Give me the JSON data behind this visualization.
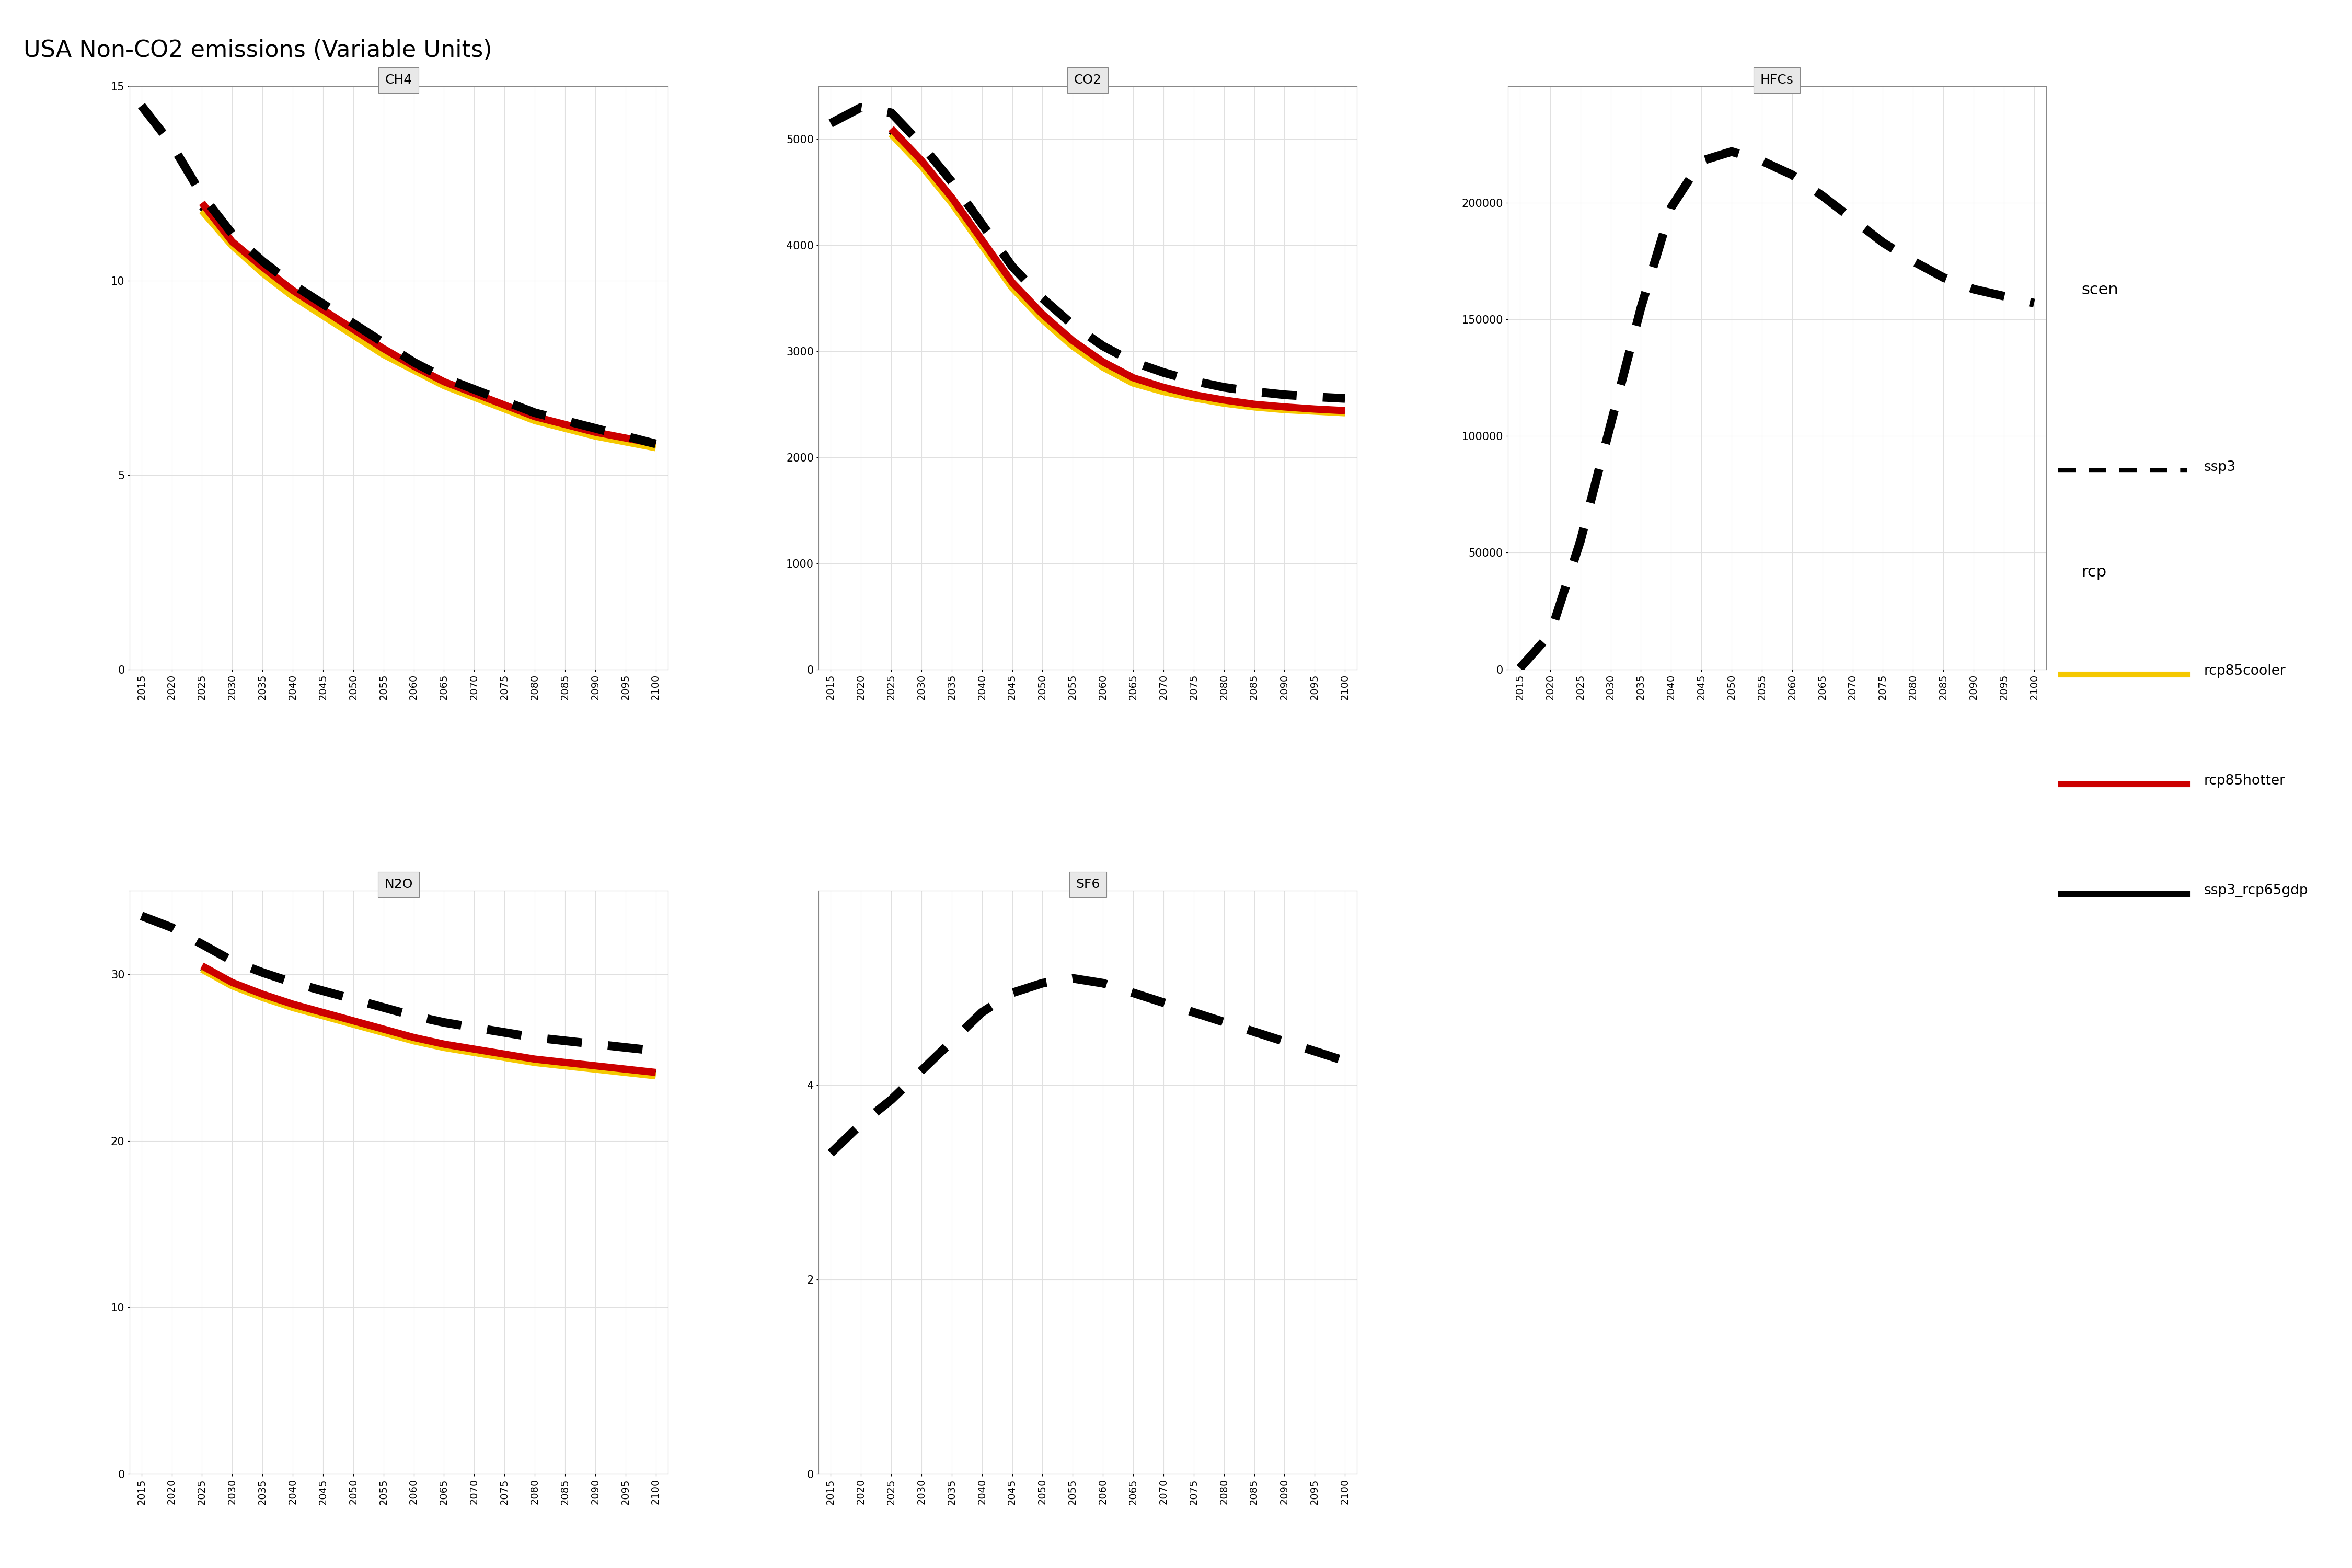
{
  "title": "USA Non-CO2 emissions (Variable Units)",
  "years": [
    2015,
    2020,
    2025,
    2030,
    2035,
    2040,
    2045,
    2050,
    2055,
    2060,
    2065,
    2070,
    2075,
    2080,
    2085,
    2090,
    2095,
    2100
  ],
  "panels": {
    "CH4": {
      "ssp3": [
        14.5,
        13.5,
        12.2,
        11.2,
        10.5,
        9.9,
        9.4,
        8.9,
        8.4,
        7.9,
        7.5,
        7.2,
        6.9,
        6.6,
        6.4,
        6.2,
        6.0,
        5.8
      ],
      "rcp85cooler": [
        null,
        null,
        11.8,
        10.9,
        10.2,
        9.6,
        9.1,
        8.6,
        8.1,
        7.7,
        7.3,
        7.0,
        6.7,
        6.4,
        6.2,
        6.0,
        5.85,
        5.7
      ],
      "rcp85hotter": [
        null,
        null,
        12.0,
        11.0,
        10.35,
        9.75,
        9.25,
        8.75,
        8.25,
        7.8,
        7.4,
        7.1,
        6.8,
        6.5,
        6.3,
        6.1,
        5.95,
        5.8
      ],
      "ssp3_rcp65gdp": [
        null,
        null,
        11.9,
        10.95,
        10.3,
        9.7,
        9.2,
        8.7,
        8.2,
        7.75,
        7.35,
        7.05,
        6.75,
        6.45,
        6.25,
        6.05,
        5.9,
        5.75
      ],
      "ylim": [
        0,
        15
      ],
      "yticks": [
        0,
        5,
        10,
        15
      ]
    },
    "CO2": {
      "ssp3": [
        5150,
        5300,
        5250,
        4950,
        4600,
        4200,
        3800,
        3500,
        3250,
        3050,
        2900,
        2800,
        2720,
        2660,
        2620,
        2590,
        2570,
        2555
      ],
      "rcp85cooler": [
        null,
        null,
        5050,
        4750,
        4400,
        4000,
        3600,
        3300,
        3050,
        2850,
        2700,
        2620,
        2560,
        2510,
        2475,
        2450,
        2435,
        2420
      ],
      "rcp85hotter": [
        null,
        null,
        5100,
        4800,
        4450,
        4050,
        3650,
        3350,
        3100,
        2900,
        2750,
        2660,
        2590,
        2540,
        2500,
        2475,
        2455,
        2440
      ],
      "ssp3_rcp65gdp": [
        null,
        null,
        5080,
        4780,
        4430,
        4030,
        3630,
        3330,
        3080,
        2880,
        2730,
        2640,
        2575,
        2525,
        2488,
        2462,
        2445,
        2430
      ],
      "ylim": [
        0,
        5500
      ],
      "yticks": [
        0,
        1000,
        2000,
        3000,
        4000,
        5000
      ]
    },
    "HFCs": {
      "ssp3": [
        500,
        15000,
        55000,
        105000,
        155000,
        198000,
        218000,
        222000,
        218000,
        212000,
        203000,
        193000,
        183000,
        175000,
        168000,
        163000,
        160000,
        157000
      ],
      "rcp85cooler": [
        null,
        null,
        null,
        null,
        null,
        null,
        null,
        null,
        null,
        null,
        null,
        null,
        null,
        null,
        null,
        null,
        null,
        null
      ],
      "rcp85hotter": [
        null,
        null,
        null,
        null,
        null,
        null,
        null,
        null,
        null,
        null,
        null,
        null,
        null,
        null,
        null,
        null,
        null,
        null
      ],
      "ssp3_rcp65gdp": [
        null,
        null,
        null,
        null,
        null,
        null,
        null,
        null,
        null,
        null,
        null,
        null,
        null,
        null,
        null,
        null,
        null,
        null
      ],
      "ylim": [
        0,
        250000
      ],
      "yticks": [
        0,
        50000,
        100000,
        150000,
        200000
      ]
    },
    "N2O": {
      "ssp3": [
        33.5,
        32.8,
        31.8,
        30.8,
        30.1,
        29.5,
        29.0,
        28.5,
        28.0,
        27.5,
        27.1,
        26.8,
        26.5,
        26.2,
        26.0,
        25.8,
        25.6,
        25.4
      ],
      "rcp85cooler": [
        null,
        null,
        30.3,
        29.3,
        28.6,
        28.0,
        27.5,
        27.0,
        26.5,
        26.0,
        25.6,
        25.3,
        25.0,
        24.7,
        24.5,
        24.3,
        24.1,
        23.9
      ],
      "rcp85hotter": [
        null,
        null,
        30.5,
        29.5,
        28.8,
        28.2,
        27.7,
        27.2,
        26.7,
        26.2,
        25.8,
        25.5,
        25.2,
        24.9,
        24.7,
        24.5,
        24.3,
        24.1
      ],
      "ssp3_rcp65gdp": [
        null,
        null,
        30.4,
        29.4,
        28.7,
        28.1,
        27.6,
        27.1,
        26.6,
        26.1,
        25.7,
        25.4,
        25.1,
        24.8,
        24.6,
        24.4,
        24.2,
        24.0
      ],
      "ylim": [
        0,
        35
      ],
      "yticks": [
        0,
        10,
        20,
        30
      ]
    },
    "SF6": {
      "ssp3": [
        3.3,
        3.6,
        3.85,
        4.15,
        4.45,
        4.75,
        4.95,
        5.05,
        5.1,
        5.05,
        4.95,
        4.85,
        4.75,
        4.65,
        4.55,
        4.45,
        4.35,
        4.25
      ],
      "rcp85cooler": [
        null,
        null,
        null,
        null,
        null,
        null,
        null,
        null,
        null,
        null,
        null,
        null,
        null,
        null,
        null,
        null,
        null,
        null
      ],
      "rcp85hotter": [
        null,
        null,
        null,
        null,
        null,
        null,
        null,
        null,
        null,
        null,
        null,
        null,
        null,
        null,
        null,
        null,
        null,
        null
      ],
      "ssp3_rcp65gdp": [
        null,
        null,
        null,
        null,
        null,
        null,
        null,
        null,
        null,
        null,
        null,
        null,
        null,
        null,
        null,
        null,
        null,
        null
      ],
      "ylim": [
        0,
        6
      ],
      "yticks": [
        0,
        2,
        4
      ]
    }
  },
  "colors": {
    "ssp3": "#000000",
    "rcp85cooler": "#F5C800",
    "rcp85hotter": "#CC0000",
    "ssp3_rcp65gdp": "#000000"
  },
  "line_widths": {
    "ssp3_dashed": 12,
    "colored_solid": 10
  },
  "background_panel": "#f5f5f5",
  "grid_color": "#e0e0e0"
}
